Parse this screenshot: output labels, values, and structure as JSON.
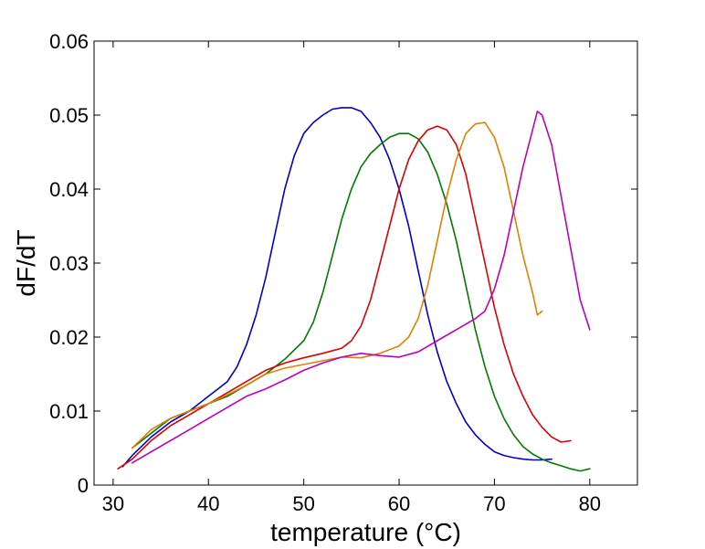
{
  "chart_data": {
    "type": "line",
    "xlabel": "temperature (°C)",
    "ylabel": "dF/dT",
    "xlim": [
      28,
      85
    ],
    "ylim": [
      0,
      0.06
    ],
    "xticks": [
      30,
      40,
      50,
      60,
      70,
      80
    ],
    "yticks": [
      0,
      0.01,
      0.02,
      0.03,
      0.04,
      0.05,
      0.06
    ],
    "xtick_labels": [
      "30",
      "40",
      "50",
      "60",
      "70",
      "80"
    ],
    "ytick_labels": [
      "0",
      "0.01",
      "0.02",
      "0.03",
      "0.04",
      "0.05",
      "0.06"
    ],
    "grid": false,
    "box": true,
    "series": [
      {
        "color": "#0000cc",
        "x": [
          31,
          32,
          34,
          36,
          38,
          40,
          41,
          42,
          43,
          44,
          45,
          46,
          47,
          48,
          49,
          50,
          51,
          52,
          53,
          54,
          55,
          56,
          57,
          58,
          59,
          60,
          61,
          62,
          63,
          64,
          65,
          66,
          67,
          68,
          69,
          70,
          71,
          72,
          73,
          74,
          75,
          76
        ],
        "y": [
          0.0025,
          0.004,
          0.0065,
          0.0085,
          0.01,
          0.012,
          0.013,
          0.014,
          0.016,
          0.019,
          0.023,
          0.028,
          0.034,
          0.04,
          0.0445,
          0.0475,
          0.049,
          0.05,
          0.0508,
          0.051,
          0.051,
          0.0505,
          0.049,
          0.047,
          0.044,
          0.04,
          0.035,
          0.029,
          0.023,
          0.018,
          0.014,
          0.011,
          0.0085,
          0.0068,
          0.0055,
          0.0045,
          0.004,
          0.0037,
          0.0035,
          0.0034,
          0.0034,
          0.0035
        ]
      },
      {
        "color": "#007a00",
        "x": [
          32,
          34,
          36,
          38,
          40,
          42,
          44,
          46,
          48,
          50,
          51,
          52,
          53,
          54,
          55,
          56,
          57,
          58,
          59,
          60,
          61,
          62,
          63,
          64,
          65,
          66,
          67,
          68,
          69,
          70,
          71,
          72,
          73,
          74,
          75,
          76,
          77,
          78,
          79,
          80
        ],
        "y": [
          0.005,
          0.007,
          0.009,
          0.01,
          0.011,
          0.012,
          0.0135,
          0.015,
          0.017,
          0.0195,
          0.022,
          0.026,
          0.031,
          0.036,
          0.04,
          0.043,
          0.0448,
          0.046,
          0.047,
          0.0475,
          0.0475,
          0.0468,
          0.045,
          0.042,
          0.038,
          0.033,
          0.027,
          0.021,
          0.016,
          0.012,
          0.009,
          0.0068,
          0.0052,
          0.0042,
          0.0035,
          0.003,
          0.0026,
          0.0022,
          0.0019,
          0.0022
        ]
      },
      {
        "color": "#dd0000",
        "x": [
          30.5,
          32,
          34,
          36,
          38,
          40,
          42,
          44,
          46,
          48,
          50,
          52,
          54,
          55,
          56,
          57,
          58,
          59,
          60,
          61,
          62,
          63,
          64,
          65,
          66,
          67,
          68,
          69,
          70,
          71,
          72,
          73,
          74,
          75,
          76,
          77,
          78
        ],
        "y": [
          0.0022,
          0.0035,
          0.006,
          0.008,
          0.0095,
          0.011,
          0.0125,
          0.014,
          0.0155,
          0.0165,
          0.0172,
          0.0178,
          0.0185,
          0.0195,
          0.0215,
          0.025,
          0.03,
          0.035,
          0.04,
          0.044,
          0.0465,
          0.048,
          0.0485,
          0.048,
          0.046,
          0.042,
          0.036,
          0.03,
          0.024,
          0.019,
          0.015,
          0.012,
          0.0095,
          0.0078,
          0.0065,
          0.0058,
          0.006
        ]
      },
      {
        "color": "#e08000",
        "x": [
          32,
          34,
          36,
          38,
          40,
          42,
          44,
          46,
          48,
          50,
          52,
          54,
          56,
          58,
          60,
          61,
          62,
          63,
          64,
          65,
          66,
          67,
          68,
          69,
          70,
          71,
          72,
          73,
          74,
          74.5,
          75
        ],
        "y": [
          0.005,
          0.0075,
          0.009,
          0.01,
          0.011,
          0.0122,
          0.0135,
          0.015,
          0.0158,
          0.0163,
          0.0168,
          0.0173,
          0.0172,
          0.0178,
          0.0188,
          0.02,
          0.0225,
          0.027,
          0.033,
          0.039,
          0.044,
          0.0475,
          0.0488,
          0.049,
          0.047,
          0.043,
          0.037,
          0.031,
          0.026,
          0.023,
          0.0235
        ]
      },
      {
        "color": "#bb00bb",
        "x": [
          32,
          34,
          36,
          38,
          40,
          42,
          44,
          46,
          48,
          50,
          52,
          54,
          56,
          58,
          60,
          62,
          64,
          66,
          68,
          69,
          70,
          71,
          72,
          73,
          74,
          74.5,
          75,
          76,
          77,
          78,
          79,
          80
        ],
        "y": [
          0.003,
          0.0045,
          0.006,
          0.0075,
          0.009,
          0.0105,
          0.012,
          0.013,
          0.0142,
          0.0155,
          0.0165,
          0.0173,
          0.0178,
          0.0175,
          0.0173,
          0.018,
          0.0195,
          0.021,
          0.0225,
          0.0235,
          0.0265,
          0.031,
          0.037,
          0.043,
          0.048,
          0.0505,
          0.05,
          0.046,
          0.039,
          0.032,
          0.025,
          0.021
        ]
      }
    ]
  }
}
